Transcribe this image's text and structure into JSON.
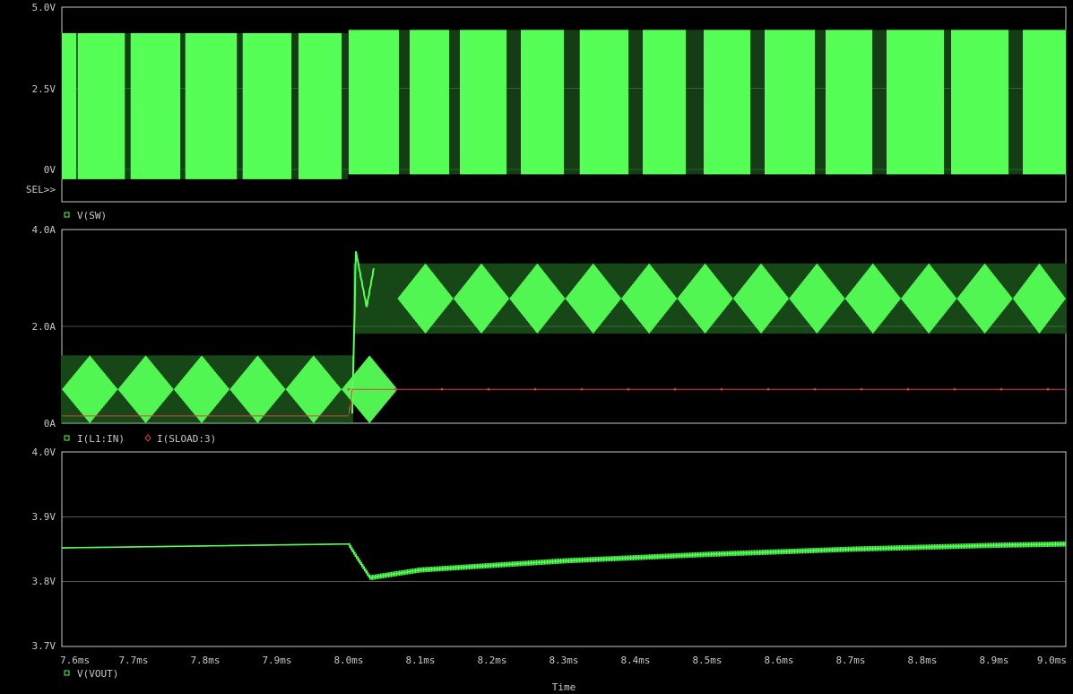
{
  "chart_data": [
    {
      "type": "line",
      "title": "",
      "ylabel": "",
      "y_ticks": [
        "5.0V",
        "2.5V",
        "0V"
      ],
      "ylim": [
        -0.35,
        5.0
      ],
      "selector_label": "SEL>>",
      "legend": [
        {
          "marker": "square",
          "color": "#55ff55",
          "label": "V(SW)"
        }
      ],
      "series": [
        {
          "name": "V(SW)",
          "color": "#55ff55",
          "style": "switching",
          "description_values": {
            "high_before_step": 4.2,
            "high_after_step": 4.3,
            "low_before_step": -0.3,
            "low_after_step": -0.15,
            "burst_edges_ms": [
              [
                7.6,
                7.62
              ],
              [
                7.622,
                7.688
              ],
              [
                7.696,
                7.765
              ],
              [
                7.772,
                7.844
              ],
              [
                7.852,
                7.92
              ],
              [
                7.93,
                7.99
              ],
              [
                8.0,
                8.07
              ],
              [
                8.085,
                8.14
              ],
              [
                8.155,
                8.22
              ],
              [
                8.24,
                8.3
              ],
              [
                8.322,
                8.39
              ],
              [
                8.41,
                8.47
              ],
              [
                8.495,
                8.56
              ],
              [
                8.58,
                8.65
              ],
              [
                8.665,
                8.73
              ],
              [
                8.75,
                8.83
              ],
              [
                8.84,
                8.92
              ],
              [
                8.94,
                9.0
              ]
            ]
          }
        }
      ]
    },
    {
      "type": "line",
      "title": "",
      "y_ticks": [
        "4.0A",
        "2.0A",
        "0A"
      ],
      "ylim": [
        0,
        4.0
      ],
      "legend": [
        {
          "marker": "square",
          "color": "#55ff55",
          "label": "I(L1:IN)"
        },
        {
          "marker": "diamond",
          "color": "#e04040",
          "label": "I(SLOAD:3)"
        }
      ],
      "series": [
        {
          "name": "I(L1:IN)",
          "color": "#55ff55",
          "style": "ripple",
          "before_step": {
            "min": 0.0,
            "max": 1.4
          },
          "after_step": {
            "min": 1.85,
            "max": 3.3
          },
          "step_ms": 8.005,
          "overshoot_peak": 3.55
        },
        {
          "name": "I(SLOAD:3)",
          "color": "#e04040",
          "x": [
            7.6,
            8.0,
            8.005,
            9.0
          ],
          "y": [
            0.15,
            0.15,
            0.7,
            0.7
          ]
        }
      ]
    },
    {
      "type": "line",
      "title": "",
      "y_ticks": [
        "4.0V",
        "3.9V",
        "3.8V",
        "3.7V"
      ],
      "ylim": [
        3.7,
        4.0
      ],
      "legend": [
        {
          "marker": "square",
          "color": "#55ff55",
          "label": "V(VOUT)"
        }
      ],
      "series": [
        {
          "name": "V(VOUT)",
          "color": "#55ff55",
          "x": [
            7.6,
            7.8,
            8.0,
            8.01,
            8.03,
            8.1,
            8.3,
            8.5,
            8.7,
            8.9,
            9.0
          ],
          "y": [
            3.852,
            3.855,
            3.858,
            3.84,
            3.806,
            3.818,
            3.832,
            3.842,
            3.85,
            3.856,
            3.858
          ],
          "ripple": 0.008
        }
      ]
    }
  ],
  "x_axis": {
    "label": "Time",
    "ticks": [
      "7.6ms",
      "7.7ms",
      "7.8ms",
      "7.9ms",
      "8.0ms",
      "8.1ms",
      "8.2ms",
      "8.3ms",
      "8.4ms",
      "8.5ms",
      "8.6ms",
      "8.7ms",
      "8.8ms",
      "8.9ms",
      "9.0ms"
    ],
    "xlim": [
      7.6,
      9.0
    ]
  },
  "colors": {
    "background": "#000000",
    "frame": "#c8c8c8",
    "trace_green": "#55ff55",
    "trace_red": "#e04040"
  }
}
